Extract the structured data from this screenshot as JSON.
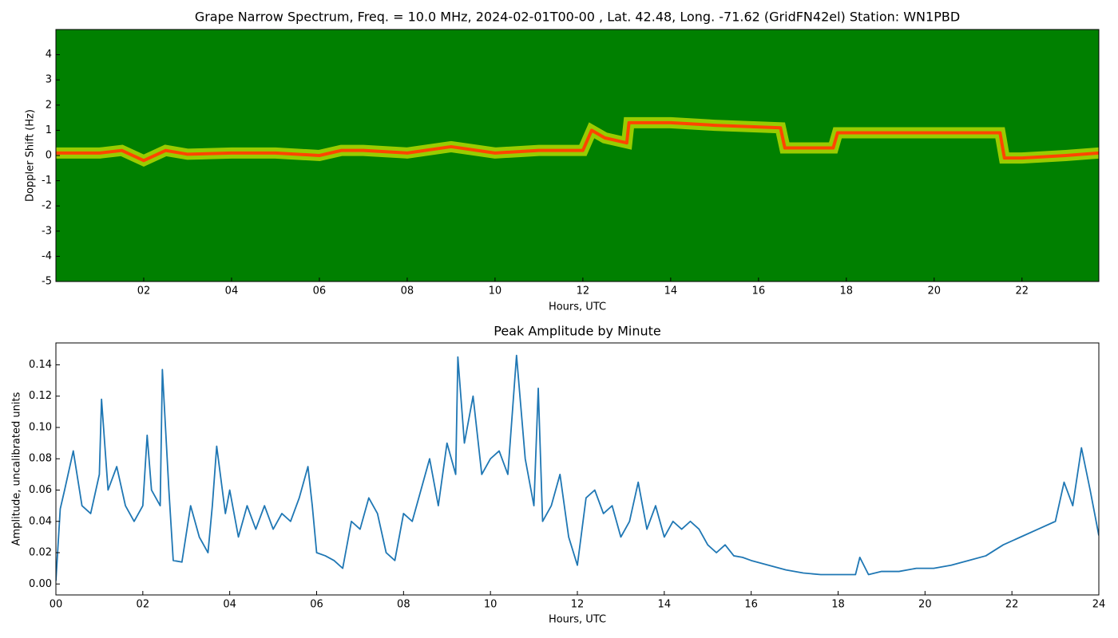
{
  "chart_data": [
    {
      "type": "spectrogram",
      "title": "Grape Narrow Spectrum, Freq. = 10.0 MHz, 2024-02-01T00-00 , Lat.  42.48, Long. -71.62 (GridFN42el) Station: WN1PBD",
      "x_label": "Hours, UTC",
      "y_label": "Doppler Shift (Hz)",
      "background": "#008000",
      "color": "#ff4500",
      "x": [
        0,
        1,
        1.5,
        2,
        2.5,
        3,
        4,
        5,
        6,
        6.5,
        7,
        8,
        9,
        10,
        11,
        12,
        12.2,
        12.5,
        13,
        13.05,
        14,
        15,
        16.5,
        16.6,
        17.7,
        17.8,
        21.5,
        21.6,
        22,
        23,
        23.75
      ],
      "values": [
        0.1,
        0.1,
        0.2,
        -0.2,
        0.2,
        0.05,
        0.1,
        0.1,
        0,
        0.2,
        0.2,
        0.1,
        0.35,
        0.1,
        0.2,
        0.2,
        1.0,
        0.7,
        0.5,
        1.3,
        1.3,
        1.2,
        1.1,
        0.3,
        0.3,
        0.9,
        0.9,
        -0.1,
        -0.1,
        0.0,
        0.1
      ],
      "xlim": [
        0,
        23.75
      ],
      "xticks": [
        {
          "value": 2,
          "label": "02"
        },
        {
          "value": 4,
          "label": "04"
        },
        {
          "value": 6,
          "label": "06"
        },
        {
          "value": 8,
          "label": "08"
        },
        {
          "value": 10,
          "label": "10"
        },
        {
          "value": 12,
          "label": "12"
        },
        {
          "value": 14,
          "label": "14"
        },
        {
          "value": 16,
          "label": "16"
        },
        {
          "value": 18,
          "label": "18"
        },
        {
          "value": 20,
          "label": "20"
        },
        {
          "value": 22,
          "label": "22"
        }
      ],
      "ylim": [
        -5,
        5
      ],
      "yticks": [
        -5,
        -4,
        -3,
        -2,
        -1,
        0,
        1,
        2,
        3,
        4
      ]
    },
    {
      "type": "line",
      "title": "Peak Amplitude by Minute",
      "x_label": "Hours, UTC",
      "y_label": "Amplitude, uncalibrated units",
      "color": "#1f77b4",
      "x": [
        0,
        0.1,
        0.2,
        0.4,
        0.6,
        0.8,
        1.0,
        1.05,
        1.2,
        1.4,
        1.6,
        1.8,
        2.0,
        2.1,
        2.2,
        2.4,
        2.45,
        2.6,
        2.7,
        2.9,
        3.1,
        3.3,
        3.5,
        3.6,
        3.7,
        3.9,
        4.0,
        4.2,
        4.4,
        4.6,
        4.8,
        5.0,
        5.2,
        5.4,
        5.6,
        5.8,
        5.9,
        6.0,
        6.2,
        6.4,
        6.6,
        6.8,
        7.0,
        7.2,
        7.4,
        7.6,
        7.8,
        8.0,
        8.2,
        8.4,
        8.6,
        8.8,
        9.0,
        9.2,
        9.25,
        9.4,
        9.6,
        9.8,
        10.0,
        10.2,
        10.4,
        10.6,
        10.8,
        11.0,
        11.1,
        11.2,
        11.4,
        11.6,
        11.8,
        12.0,
        12.2,
        12.4,
        12.6,
        12.8,
        13.0,
        13.2,
        13.4,
        13.6,
        13.8,
        14.0,
        14.2,
        14.4,
        14.6,
        14.8,
        15.0,
        15.2,
        15.4,
        15.6,
        15.8,
        16.0,
        16.4,
        16.8,
        17.2,
        17.6,
        18.0,
        18.4,
        18.5,
        18.7,
        19.0,
        19.4,
        19.8,
        20.2,
        20.6,
        21.0,
        21.4,
        21.8,
        22.2,
        22.6,
        23.0,
        23.2,
        23.4,
        23.6,
        23.8,
        24.0
      ],
      "values": [
        0.002,
        0.048,
        0.06,
        0.085,
        0.05,
        0.045,
        0.07,
        0.118,
        0.06,
        0.075,
        0.05,
        0.04,
        0.05,
        0.095,
        0.06,
        0.05,
        0.137,
        0.06,
        0.015,
        0.014,
        0.05,
        0.03,
        0.02,
        0.05,
        0.088,
        0.045,
        0.06,
        0.03,
        0.05,
        0.035,
        0.05,
        0.035,
        0.045,
        0.04,
        0.055,
        0.075,
        0.05,
        0.02,
        0.018,
        0.015,
        0.01,
        0.04,
        0.035,
        0.055,
        0.045,
        0.02,
        0.015,
        0.045,
        0.04,
        0.06,
        0.08,
        0.05,
        0.09,
        0.07,
        0.145,
        0.09,
        0.12,
        0.07,
        0.08,
        0.085,
        0.07,
        0.146,
        0.08,
        0.05,
        0.125,
        0.04,
        0.05,
        0.07,
        0.03,
        0.012,
        0.055,
        0.06,
        0.045,
        0.05,
        0.03,
        0.04,
        0.065,
        0.035,
        0.05,
        0.03,
        0.04,
        0.035,
        0.04,
        0.035,
        0.025,
        0.02,
        0.025,
        0.018,
        0.017,
        0.015,
        0.012,
        0.009,
        0.007,
        0.006,
        0.006,
        0.006,
        0.017,
        0.006,
        0.008,
        0.008,
        0.01,
        0.01,
        0.012,
        0.015,
        0.018,
        0.025,
        0.03,
        0.035,
        0.04,
        0.065,
        0.05,
        0.087,
        0.06,
        0.031
      ],
      "xlim": [
        0,
        24
      ],
      "xticks": [
        {
          "value": 0,
          "label": "00"
        },
        {
          "value": 2,
          "label": "02"
        },
        {
          "value": 4,
          "label": "04"
        },
        {
          "value": 6,
          "label": "06"
        },
        {
          "value": 8,
          "label": "08"
        },
        {
          "value": 10,
          "label": "10"
        },
        {
          "value": 12,
          "label": "12"
        },
        {
          "value": 14,
          "label": "14"
        },
        {
          "value": 16,
          "label": "16"
        },
        {
          "value": 18,
          "label": "18"
        },
        {
          "value": 20,
          "label": "20"
        },
        {
          "value": 22,
          "label": "22"
        },
        {
          "value": 24,
          "label": "24"
        }
      ],
      "ylim": [
        -0.007,
        0.154
      ],
      "yticks": [
        {
          "value": 0,
          "label": "0.00"
        },
        0.02,
        0.04,
        0.06,
        0.08,
        {
          "value": 0.1,
          "label": "0.10"
        },
        0.12,
        0.14
      ]
    }
  ]
}
